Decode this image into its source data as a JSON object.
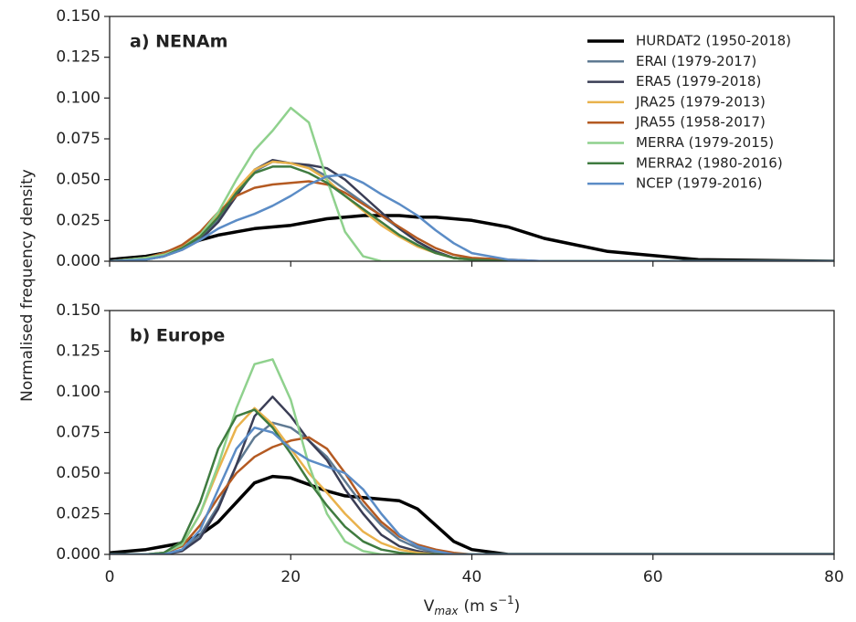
{
  "chart_data": [
    {
      "type": "line",
      "panel_label": "a) NENAm",
      "y_label": "Normalised frequency density",
      "legend": "upper right",
      "x": [
        0,
        4,
        6,
        8,
        10,
        12,
        14,
        16,
        18,
        20,
        22,
        24,
        26,
        28,
        30,
        32,
        34,
        36,
        38,
        40,
        44,
        48,
        55,
        65,
        80
      ],
      "xlim": [
        0,
        80
      ],
      "xticks": [
        0,
        20,
        40,
        60,
        80
      ],
      "ylim": [
        0,
        0.15
      ],
      "yticks": [
        {
          "value": 0,
          "label": "0.000"
        },
        {
          "value": 0.025,
          "label": "0.025"
        },
        {
          "value": 0.05,
          "label": "0.050"
        },
        {
          "value": 0.075,
          "label": "0.075"
        },
        {
          "value": 0.1,
          "label": "0.100"
        },
        {
          "value": 0.125,
          "label": "0.125"
        },
        {
          "value": 0.15,
          "label": "0.150"
        }
      ],
      "series": [
        {
          "name": "HURDAT2 (1950-2018)",
          "color": "#000000",
          "values": [
            0.001,
            0.003,
            0.005,
            0.009,
            0.013,
            0.016,
            0.018,
            0.02,
            0.021,
            0.022,
            0.024,
            0.026,
            0.027,
            0.028,
            0.028,
            0.028,
            0.027,
            0.027,
            0.026,
            0.025,
            0.021,
            0.014,
            0.006,
            0.001,
            0
          ]
        },
        {
          "name": "ERAI (1979-2017)",
          "color": "#5f7a92",
          "values": [
            0,
            0.001,
            0.004,
            0.008,
            0.014,
            0.025,
            0.04,
            0.055,
            0.061,
            0.06,
            0.058,
            0.052,
            0.044,
            0.036,
            0.028,
            0.02,
            0.012,
            0.006,
            0.002,
            0.001,
            0,
            0,
            0,
            0,
            0
          ]
        },
        {
          "name": "ERA5 (1979-2018)",
          "color": "#3a3d55",
          "values": [
            0,
            0.001,
            0.003,
            0.007,
            0.013,
            0.024,
            0.04,
            0.056,
            0.062,
            0.06,
            0.059,
            0.057,
            0.05,
            0.04,
            0.03,
            0.02,
            0.012,
            0.006,
            0.002,
            0.001,
            0,
            0,
            0,
            0,
            0
          ]
        },
        {
          "name": "JRA25 (1979-2013)",
          "color": "#e9b24c",
          "values": [
            0,
            0.002,
            0.005,
            0.009,
            0.016,
            0.028,
            0.044,
            0.056,
            0.061,
            0.06,
            0.057,
            0.05,
            0.04,
            0.031,
            0.022,
            0.015,
            0.009,
            0.005,
            0.002,
            0.001,
            0,
            0,
            0,
            0,
            0
          ]
        },
        {
          "name": "JRA55 (1958-2017)",
          "color": "#b45a22",
          "values": [
            0,
            0.002,
            0.005,
            0.01,
            0.018,
            0.03,
            0.04,
            0.045,
            0.047,
            0.048,
            0.049,
            0.047,
            0.042,
            0.035,
            0.028,
            0.021,
            0.014,
            0.008,
            0.004,
            0.002,
            0.001,
            0,
            0,
            0,
            0
          ]
        },
        {
          "name": "MERRA (1979-2015)",
          "color": "#8fd18d",
          "values": [
            0,
            0.002,
            0.004,
            0.008,
            0.016,
            0.03,
            0.05,
            0.068,
            0.08,
            0.094,
            0.085,
            0.05,
            0.018,
            0.003,
            0,
            0,
            0,
            0,
            0,
            0,
            0,
            0,
            0,
            0,
            0
          ]
        },
        {
          "name": "MERRA2 (1980-2016)",
          "color": "#3f7b40",
          "values": [
            0,
            0.001,
            0.003,
            0.008,
            0.015,
            0.027,
            0.042,
            0.054,
            0.058,
            0.058,
            0.054,
            0.048,
            0.04,
            0.032,
            0.024,
            0.016,
            0.01,
            0.005,
            0.002,
            0.001,
            0,
            0,
            0,
            0,
            0
          ]
        },
        {
          "name": "NCEP (1979-2016)",
          "color": "#5b8cc6",
          "values": [
            0,
            0.001,
            0.003,
            0.007,
            0.013,
            0.02,
            0.025,
            0.029,
            0.034,
            0.04,
            0.047,
            0.052,
            0.053,
            0.048,
            0.041,
            0.035,
            0.028,
            0.019,
            0.011,
            0.005,
            0.001,
            0,
            0,
            0,
            0
          ]
        }
      ]
    },
    {
      "type": "line",
      "panel_label": "b) Europe",
      "x_label": {
        "text": "V",
        "sub": "max",
        "unit": "(m s",
        "sup": "−1",
        "end": ")"
      },
      "x": [
        0,
        4,
        6,
        8,
        10,
        12,
        14,
        16,
        18,
        20,
        22,
        24,
        26,
        28,
        30,
        32,
        34,
        36,
        38,
        40,
        44,
        48,
        55,
        65,
        80
      ],
      "xlim": [
        0,
        80
      ],
      "xticks": [
        0,
        20,
        40,
        60,
        80
      ],
      "ylim": [
        0,
        0.15
      ],
      "yticks": [
        {
          "value": 0,
          "label": "0.000"
        },
        {
          "value": 0.025,
          "label": "0.025"
        },
        {
          "value": 0.05,
          "label": "0.050"
        },
        {
          "value": 0.075,
          "label": "0.075"
        },
        {
          "value": 0.1,
          "label": "0.100"
        },
        {
          "value": 0.125,
          "label": "0.125"
        },
        {
          "value": 0.15,
          "label": "0.150"
        }
      ],
      "series": [
        {
          "color": "#000000",
          "values": [
            0.001,
            0.003,
            0.005,
            0.007,
            0.012,
            0.02,
            0.032,
            0.044,
            0.048,
            0.047,
            0.043,
            0.039,
            0.036,
            0.035,
            0.034,
            0.033,
            0.028,
            0.018,
            0.008,
            0.003,
            0,
            0,
            0,
            0,
            0
          ]
        },
        {
          "color": "#5f7a92",
          "values": [
            0,
            0,
            0,
            0.003,
            0.012,
            0.03,
            0.055,
            0.072,
            0.081,
            0.078,
            0.07,
            0.06,
            0.045,
            0.03,
            0.018,
            0.009,
            0.004,
            0.001,
            0,
            0,
            0,
            0,
            0,
            0,
            0
          ]
        },
        {
          "color": "#3a3d55",
          "values": [
            0,
            0,
            0,
            0.002,
            0.01,
            0.028,
            0.055,
            0.085,
            0.097,
            0.085,
            0.07,
            0.058,
            0.04,
            0.025,
            0.012,
            0.005,
            0.002,
            0,
            0,
            0,
            0,
            0,
            0,
            0,
            0
          ]
        },
        {
          "color": "#e9b24c",
          "values": [
            0,
            0,
            0.001,
            0.006,
            0.025,
            0.052,
            0.078,
            0.09,
            0.08,
            0.065,
            0.05,
            0.038,
            0.025,
            0.014,
            0.007,
            0.003,
            0.001,
            0,
            0,
            0,
            0,
            0,
            0,
            0,
            0
          ]
        },
        {
          "color": "#b45a22",
          "values": [
            0,
            0,
            0.001,
            0.005,
            0.018,
            0.035,
            0.05,
            0.06,
            0.066,
            0.07,
            0.072,
            0.065,
            0.05,
            0.033,
            0.02,
            0.011,
            0.006,
            0.003,
            0.001,
            0,
            0,
            0,
            0,
            0,
            0
          ]
        },
        {
          "color": "#8fd18d",
          "values": [
            0,
            0,
            0.001,
            0.006,
            0.025,
            0.055,
            0.09,
            0.117,
            0.12,
            0.095,
            0.055,
            0.025,
            0.008,
            0.002,
            0,
            0,
            0,
            0,
            0,
            0,
            0,
            0,
            0,
            0,
            0
          ]
        },
        {
          "color": "#3f7b40",
          "values": [
            0,
            0,
            0.001,
            0.008,
            0.032,
            0.065,
            0.085,
            0.089,
            0.078,
            0.062,
            0.045,
            0.03,
            0.017,
            0.008,
            0.003,
            0.001,
            0,
            0,
            0,
            0,
            0,
            0,
            0,
            0,
            0
          ]
        },
        {
          "color": "#5b8cc6",
          "values": [
            0,
            0,
            0,
            0.003,
            0.015,
            0.04,
            0.065,
            0.078,
            0.075,
            0.065,
            0.058,
            0.054,
            0.05,
            0.04,
            0.025,
            0.012,
            0.005,
            0.002,
            0,
            0,
            0,
            0,
            0,
            0,
            0
          ]
        }
      ]
    }
  ]
}
